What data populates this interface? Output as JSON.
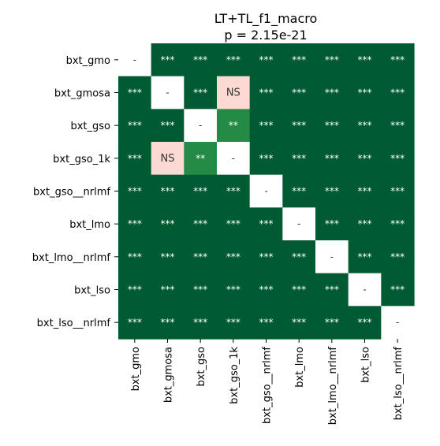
{
  "chart_data": {
    "type": "heatmap",
    "title": "LT+TL_f1_macro",
    "subtitle": "p = 2.15e-21",
    "labels": [
      "bxt_gmo",
      "bxt_gmosa",
      "bxt_gso",
      "bxt_gso_1k",
      "bxt_gso__nrlmf",
      "bxt_lmo",
      "bxt_lmo__nrlmf",
      "bxt_lso",
      "bxt_lso__nrlmf"
    ],
    "cells": [
      [
        "-",
        "***",
        "***",
        "***",
        "***",
        "***",
        "***",
        "***",
        "***"
      ],
      [
        "***",
        "-",
        "***",
        "NS",
        "***",
        "***",
        "***",
        "***",
        "***"
      ],
      [
        "***",
        "***",
        "-",
        "**",
        "***",
        "***",
        "***",
        "***",
        "***"
      ],
      [
        "***",
        "NS",
        "**",
        "-",
        "***",
        "***",
        "***",
        "***",
        "***"
      ],
      [
        "***",
        "***",
        "***",
        "***",
        "-",
        "***",
        "***",
        "***",
        "***"
      ],
      [
        "***",
        "***",
        "***",
        "***",
        "***",
        "-",
        "***",
        "***",
        "***"
      ],
      [
        "***",
        "***",
        "***",
        "***",
        "***",
        "***",
        "-",
        "***",
        "***"
      ],
      [
        "***",
        "***",
        "***",
        "***",
        "***",
        "***",
        "***",
        "-",
        "***"
      ],
      [
        "***",
        "***",
        "***",
        "***",
        "***",
        "***",
        "***",
        "***",
        "-"
      ]
    ],
    "colors": {
      "***": "#005a32",
      "**": "#238b45",
      "NS": "#fcd9d3",
      "-": "#ffffff"
    },
    "text_colors": {
      "***": "#ffffff",
      "**": "#ffffff",
      "NS": "#333333",
      "-": "#333333"
    },
    "colorbar": false,
    "grid": false
  }
}
